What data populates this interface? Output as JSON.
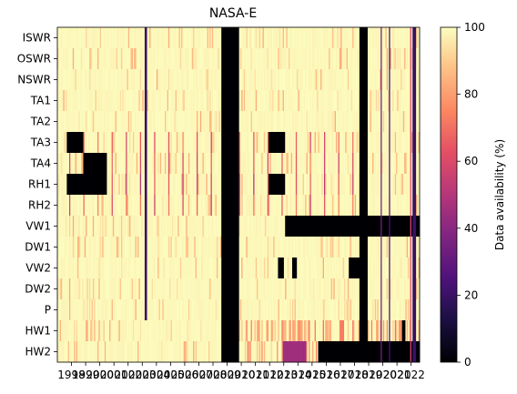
{
  "chart_data": {
    "type": "heatmap",
    "title": "NASA-E",
    "rows": [
      "ISWR",
      "OSWR",
      "NSWR",
      "TA1",
      "TA2",
      "TA3",
      "TA4",
      "RH1",
      "RH2",
      "VW1",
      "DW1",
      "VW2",
      "DW2",
      "P",
      "HW1",
      "HW2"
    ],
    "x_range": [
      1997.0,
      2022.6
    ],
    "year_ticks": [
      1998,
      1999,
      2000,
      2001,
      2002,
      2003,
      2004,
      2005,
      2006,
      2007,
      2008,
      2009,
      2010,
      2011,
      2012,
      2013,
      2014,
      2015,
      2016,
      2017,
      2018,
      2019,
      2020,
      2021,
      2022
    ],
    "year_tick_labels": [
      "1998",
      "1999",
      "2000",
      "2001",
      "2002",
      "2003",
      "2004",
      "2005",
      "2006",
      "2007",
      "2008",
      "2009",
      "2010",
      "2011",
      "2012",
      "2013",
      "2014",
      "2015",
      "2016",
      "2017",
      "2018",
      "2019",
      "2020",
      "2021",
      "2022"
    ],
    "base_value": 98,
    "gaps": [
      {
        "rows": "all",
        "x": [
          2008.6,
          2009.8
        ],
        "value": 0
      },
      {
        "rows": "all",
        "x": [
          2018.3,
          2018.9
        ],
        "value": 0
      },
      {
        "rows": [
          "TA3"
        ],
        "x": [
          1997.7,
          1998.8
        ],
        "value": 0
      },
      {
        "rows": [
          "TA4",
          "RH1"
        ],
        "x": [
          1998.8,
          2000.5
        ],
        "value": 0
      },
      {
        "rows": [
          "RH1"
        ],
        "x": [
          1997.7,
          1998.8
        ],
        "value": 0
      },
      {
        "rows": [
          "TA3"
        ],
        "x": [
          2011.9,
          2013.1
        ],
        "value": 0
      },
      {
        "rows": [
          "RH1"
        ],
        "x": [
          2011.9,
          2013.1
        ],
        "value": 0
      },
      {
        "rows": [
          "VW1"
        ],
        "x": [
          2013.1,
          2022.6
        ],
        "value": 0
      },
      {
        "rows": [
          "HW2"
        ],
        "x": [
          2015.4,
          2022.6
        ],
        "value": 0
      },
      {
        "rows": [
          "HW2"
        ],
        "x": [
          2012.9,
          2014.6
        ],
        "value": 45
      },
      {
        "rows": [
          "VW2"
        ],
        "x": [
          2012.6,
          2013.0
        ],
        "value": 0
      },
      {
        "rows": [
          "VW2"
        ],
        "x": [
          2013.6,
          2013.9
        ],
        "value": 0
      },
      {
        "rows": [
          "VW2"
        ],
        "x": [
          2017.6,
          2018.3
        ],
        "value": 0
      },
      {
        "rows": "all",
        "x": [
          2019.8,
          2019.9
        ],
        "value": 35
      },
      {
        "rows": "all",
        "x": [
          2020.4,
          2020.5
        ],
        "value": 25
      },
      {
        "rows": "all",
        "x": [
          2022.1,
          2022.3
        ],
        "value": 20
      },
      {
        "rows": "all",
        "x": [
          2021.9,
          2022.0
        ],
        "value": 60
      },
      {
        "rows": [
          "ISWR",
          "OSWR",
          "NSWR",
          "TA1",
          "TA2",
          "TA3",
          "TA4",
          "RH1",
          "RH2",
          "VW1",
          "DW1",
          "VW2",
          "DW2",
          "P"
        ],
        "x": [
          2003.2,
          2003.3
        ],
        "value": 20
      },
      {
        "rows": [
          "HW1",
          "HW2"
        ],
        "x": [
          2021.3,
          2021.6
        ],
        "value": 0
      }
    ],
    "seasonal_rows": {
      "TA3": 55,
      "TA4": 55,
      "RH1": 50,
      "RH2": 55
    },
    "colorbar": {
      "label": "Data availability (%)",
      "ticks": [
        0,
        20,
        40,
        60,
        80,
        100
      ],
      "tick_labels": [
        "0",
        "20",
        "40",
        "60",
        "80",
        "100"
      ],
      "range": [
        0,
        100
      ],
      "colormap": "magma"
    }
  }
}
